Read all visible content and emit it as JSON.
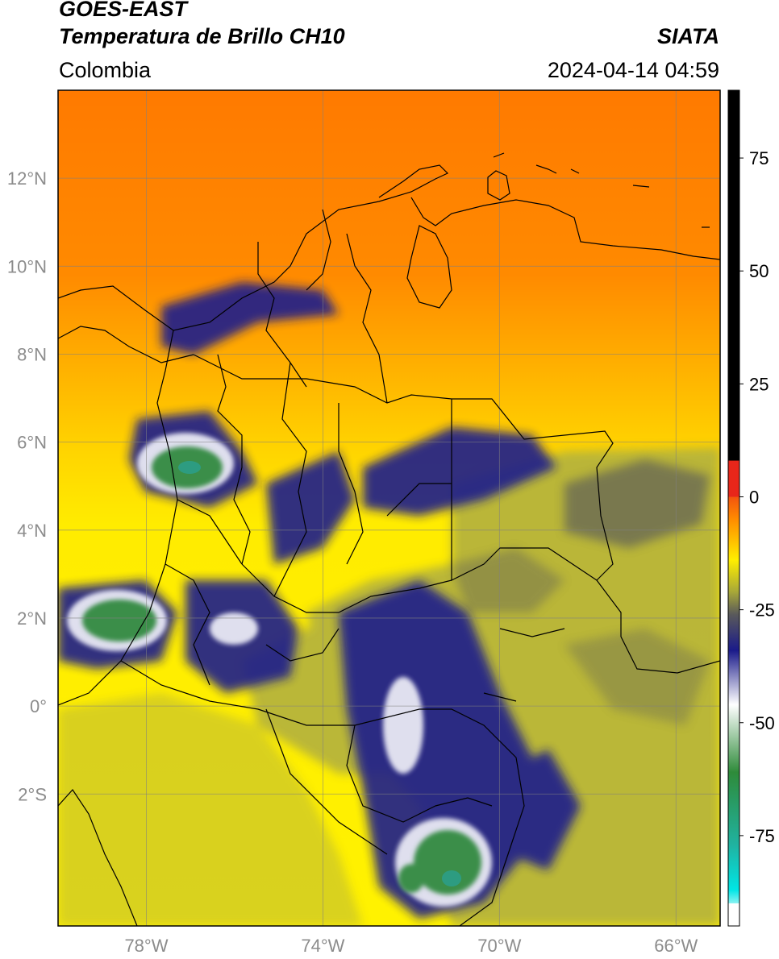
{
  "header": {
    "satellite": "GOES-EAST",
    "product": "Temperatura de Brillo CH10",
    "organization": "SIATA",
    "region": "Colombia",
    "timestamp": "2024-04-14 04:59"
  },
  "map": {
    "lon_range": [
      -80,
      -65
    ],
    "lat_range": [
      -5,
      14
    ],
    "lat_ticks": [
      {
        "value": 12,
        "label": "12°N"
      },
      {
        "value": 10,
        "label": "10°N"
      },
      {
        "value": 8,
        "label": "8°N"
      },
      {
        "value": 6,
        "label": "6°N"
      },
      {
        "value": 4,
        "label": "4°N"
      },
      {
        "value": 2,
        "label": "2°N"
      },
      {
        "value": 0,
        "label": "0°"
      },
      {
        "value": -2,
        "label": "2°S"
      }
    ],
    "lon_ticks": [
      {
        "value": -78,
        "label": "78°W"
      },
      {
        "value": -74,
        "label": "74°W"
      },
      {
        "value": -70,
        "label": "70°W"
      },
      {
        "value": -66,
        "label": "66°W"
      }
    ],
    "grid": true
  },
  "colorbar": {
    "range": [
      -95,
      90
    ],
    "ticks": [
      {
        "value": 75,
        "label": "75"
      },
      {
        "value": 50,
        "label": "50"
      },
      {
        "value": 25,
        "label": "25"
      },
      {
        "value": 0,
        "label": "0"
      },
      {
        "value": -25,
        "label": "-25"
      },
      {
        "value": -50,
        "label": "-50"
      },
      {
        "value": -75,
        "label": "-75"
      }
    ],
    "colors": {
      "warm": "#000000",
      "red": "#e8261a",
      "orange": "#ff8c00",
      "yellow": "#ffee00",
      "olive": "#a8a838",
      "gray": "#5a5a5a",
      "navy": "#1a1a8a",
      "white": "#ffffff",
      "green": "#2e8b3a",
      "teal": "#20b2a0",
      "cyan": "#00e5e5"
    }
  }
}
